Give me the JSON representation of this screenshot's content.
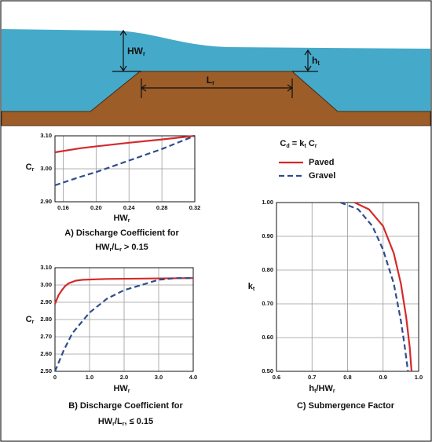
{
  "diagram": {
    "hw_label": [
      "HW",
      "r"
    ],
    "ht_label": [
      "h",
      "t"
    ],
    "lr_label": [
      "L",
      "r"
    ]
  },
  "legend": {
    "formula": [
      "C",
      "d",
      " = k",
      "t",
      " C",
      "r"
    ]
  },
  "chart_data": [
    {
      "type": "line",
      "x_label": [
        "HW",
        "r"
      ],
      "y_label": [
        "C",
        "r"
      ],
      "caption": [
        [
          "A)  Discharge Coefficient for"
        ],
        [
          "HW",
          "r",
          "/L",
          "r",
          " > 0.15"
        ]
      ],
      "xlim": [
        0.15,
        0.32
      ],
      "xticks": [
        0.16,
        {
          "value": 0.2,
          "label": "0.20"
        },
        0.24,
        0.28,
        0.32
      ],
      "ylim": [
        2.9,
        3.1
      ],
      "yticks": [
        {
          "value": 2.9,
          "label": "2.90"
        },
        {
          "value": 3,
          "label": "3.00"
        },
        {
          "value": 3.1,
          "label": "3.10"
        }
      ],
      "grid": true,
      "series": [
        {
          "name": "Paved",
          "color": "#d42a2a",
          "dashed": false,
          "x": [
            0.15,
            0.18,
            0.2,
            0.24,
            0.28,
            0.32
          ],
          "values": [
            3.05,
            3.062,
            3.068,
            3.079,
            3.089,
            3.1
          ]
        },
        {
          "name": "Gravel",
          "color": "#2f4d8c",
          "dashed": true,
          "x": [
            0.15,
            0.18,
            0.2,
            0.24,
            0.28,
            0.32
          ],
          "values": [
            2.95,
            2.975,
            2.99,
            3.025,
            3.06,
            3.1
          ]
        }
      ]
    },
    {
      "type": "line",
      "x_label": [
        "HW",
        "r"
      ],
      "y_label": [
        "C",
        "r"
      ],
      "caption": [
        [
          "B) Discharge Coefficient for"
        ],
        [
          "HW",
          "r",
          "/L",
          "r",
          ", ≤ 0.15"
        ]
      ],
      "xlim": [
        0,
        4
      ],
      "xticks": [
        0,
        {
          "value": 1,
          "label": "1.0"
        },
        {
          "value": 2,
          "label": "2.0"
        },
        {
          "value": 3,
          "label": "3.0"
        },
        {
          "value": 4,
          "label": "4.0"
        }
      ],
      "ylim": [
        2.5,
        3.1
      ],
      "yticks": [
        {
          "value": 2.5,
          "label": "2.50"
        },
        {
          "value": 2.6,
          "label": "2.60"
        },
        {
          "value": 2.7,
          "label": "2.70"
        },
        {
          "value": 2.8,
          "label": "2.80"
        },
        {
          "value": 2.9,
          "label": "2.90"
        },
        {
          "value": 3,
          "label": "3.00"
        },
        {
          "value": 3.1,
          "label": "3.10"
        }
      ],
      "grid": true,
      "series": [
        {
          "name": "Paved",
          "color": "#d42a2a",
          "dashed": false,
          "x": [
            0,
            0.1,
            0.2,
            0.3,
            0.4,
            0.6,
            0.8,
            1.5,
            4
          ],
          "values": [
            2.89,
            2.94,
            2.97,
            2.995,
            3.01,
            3.025,
            3.03,
            3.035,
            3.04
          ]
        },
        {
          "name": "Gravel",
          "color": "#2f4d8c",
          "dashed": true,
          "x": [
            0,
            0.25,
            0.5,
            1,
            1.5,
            2,
            2.5,
            3,
            3.5,
            4
          ],
          "values": [
            2.5,
            2.62,
            2.72,
            2.84,
            2.92,
            2.97,
            3,
            3.03,
            3.04,
            3.04
          ]
        }
      ]
    },
    {
      "type": "line",
      "x_label": [
        "h",
        "t",
        "/HW",
        "r"
      ],
      "y_label": [
        "k",
        "t"
      ],
      "caption": [
        [
          "C) Submergence Factor"
        ]
      ],
      "xlim": [
        0.6,
        1
      ],
      "xticks": [
        0.6,
        0.7,
        0.8,
        0.9,
        {
          "value": 1,
          "label": "1.0"
        }
      ],
      "ylim": [
        0.5,
        1
      ],
      "yticks": [
        {
          "value": 0.5,
          "label": "0.50"
        },
        {
          "value": 0.6,
          "label": "0.60"
        },
        {
          "value": 0.7,
          "label": "0.70"
        },
        {
          "value": 0.8,
          "label": "0.80"
        },
        {
          "value": 0.9,
          "label": "0.90"
        },
        {
          "value": 1,
          "label": "1.00"
        }
      ],
      "grid": true,
      "series": [
        {
          "name": "Paved",
          "color": "#d42a2a",
          "dashed": false,
          "x": [
            0.82,
            0.86,
            0.9,
            0.93,
            0.95,
            0.965,
            0.975,
            0.98
          ],
          "values": [
            1,
            0.98,
            0.93,
            0.85,
            0.76,
            0.66,
            0.57,
            0.5
          ]
        },
        {
          "name": "Gravel",
          "color": "#2f4d8c",
          "dashed": true,
          "x": [
            0.78,
            0.83,
            0.87,
            0.9,
            0.93,
            0.95,
            0.96,
            0.97
          ],
          "values": [
            1,
            0.98,
            0.93,
            0.86,
            0.76,
            0.65,
            0.58,
            0.5
          ]
        }
      ]
    }
  ]
}
